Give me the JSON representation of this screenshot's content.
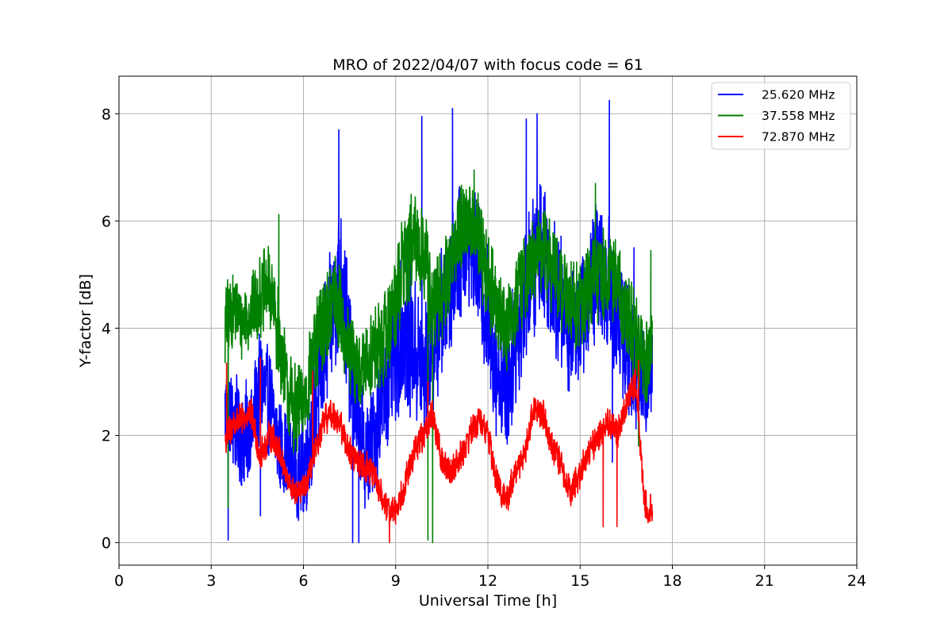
{
  "chart_data": {
    "type": "line",
    "title": "MRO of 2022/04/07 with focus code = 61",
    "xlabel": "Universal Time [h]",
    "ylabel": "Y-factor [dB]",
    "xlim": [
      0,
      24
    ],
    "ylim": [
      -0.42,
      8.7
    ],
    "xticks": [
      0,
      3,
      6,
      9,
      12,
      15,
      18,
      21,
      24
    ],
    "yticks": [
      0,
      2,
      4,
      6,
      8
    ],
    "grid": true,
    "legend_position": "upper right",
    "series": [
      {
        "name": "25.620 MHz",
        "color": "#0000ff",
        "x": [
          3.45,
          3.7,
          4.0,
          4.3,
          4.6,
          4.9,
          5.2,
          5.5,
          5.8,
          6.1,
          6.4,
          6.7,
          7.0,
          7.2,
          7.5,
          7.8,
          8.1,
          8.4,
          8.7,
          9.0,
          9.3,
          9.6,
          9.9,
          10.2,
          10.5,
          10.8,
          11.1,
          11.4,
          11.7,
          12.0,
          12.3,
          12.6,
          12.9,
          13.2,
          13.5,
          13.8,
          14.1,
          14.4,
          14.7,
          15.0,
          15.3,
          15.6,
          15.9,
          16.2,
          16.5,
          16.8,
          17.1,
          17.35
        ],
        "mid": [
          2.4,
          2.3,
          2.0,
          2.1,
          2.9,
          2.6,
          1.8,
          1.6,
          1.2,
          1.6,
          2.6,
          3.6,
          4.5,
          5.2,
          3.6,
          2.0,
          1.6,
          2.3,
          2.9,
          3.6,
          4.0,
          3.6,
          3.1,
          3.6,
          4.3,
          4.8,
          5.4,
          5.6,
          5.1,
          4.2,
          3.2,
          2.8,
          3.8,
          4.6,
          5.2,
          5.6,
          4.9,
          4.4,
          3.9,
          4.2,
          4.7,
          5.1,
          4.9,
          4.3,
          3.8,
          3.3,
          2.9,
          3.4
        ],
        "amp": [
          0.9,
          1.0,
          1.0,
          1.0,
          1.1,
          1.0,
          0.9,
          0.8,
          0.8,
          1.1,
          1.2,
          1.3,
          1.4,
          1.5,
          1.4,
          1.1,
          1.1,
          1.2,
          1.3,
          1.4,
          1.5,
          1.4,
          1.4,
          1.3,
          1.3,
          1.3,
          1.3,
          1.2,
          1.3,
          1.4,
          1.3,
          1.3,
          1.3,
          1.3,
          1.4,
          1.4,
          1.3,
          1.3,
          1.2,
          1.2,
          1.3,
          1.4,
          1.4,
          1.3,
          1.3,
          1.2,
          1.1,
          1.0
        ],
        "spikes": [
          [
            3.55,
            0.05
          ],
          [
            4.6,
            0.5
          ],
          [
            7.15,
            7.7
          ],
          [
            7.6,
            0.0
          ],
          [
            7.8,
            0.0
          ],
          [
            9.85,
            7.95
          ],
          [
            10.85,
            8.1
          ],
          [
            13.25,
            7.9
          ],
          [
            13.6,
            8.0
          ],
          [
            15.95,
            8.25
          ],
          [
            16.05,
            1.5
          ],
          [
            16.75,
            5.5
          ]
        ]
      },
      {
        "name": "37.558 MHz",
        "color": "#008000",
        "x": [
          3.45,
          3.7,
          4.0,
          4.3,
          4.6,
          4.9,
          5.2,
          5.5,
          5.8,
          6.1,
          6.4,
          6.7,
          7.0,
          7.2,
          7.5,
          7.8,
          8.1,
          8.4,
          8.7,
          9.0,
          9.3,
          9.6,
          9.9,
          10.2,
          10.5,
          10.8,
          11.1,
          11.4,
          11.7,
          12.0,
          12.3,
          12.6,
          12.9,
          13.2,
          13.5,
          13.8,
          14.1,
          14.4,
          14.7,
          15.0,
          15.3,
          15.6,
          15.9,
          16.2,
          16.5,
          16.8,
          17.1,
          17.35
        ],
        "mid": [
          4.0,
          4.4,
          4.1,
          4.3,
          4.6,
          4.8,
          3.8,
          2.8,
          2.4,
          2.8,
          3.6,
          4.3,
          4.6,
          4.3,
          3.5,
          3.2,
          3.4,
          3.6,
          3.9,
          4.6,
          5.3,
          5.6,
          5.5,
          4.3,
          4.6,
          5.3,
          5.9,
          6.0,
          5.6,
          4.9,
          4.3,
          4.0,
          4.5,
          5.0,
          5.2,
          5.6,
          5.1,
          4.8,
          4.4,
          4.4,
          4.7,
          5.0,
          5.1,
          4.9,
          4.3,
          3.8,
          3.4,
          3.8
        ],
        "amp": [
          0.8,
          0.8,
          0.7,
          0.7,
          0.8,
          0.8,
          0.9,
          0.9,
          0.9,
          0.9,
          0.9,
          0.9,
          0.9,
          0.9,
          0.9,
          0.9,
          0.9,
          0.9,
          0.9,
          1.0,
          1.0,
          1.0,
          1.0,
          1.0,
          0.9,
          0.9,
          0.9,
          0.9,
          0.9,
          0.9,
          0.9,
          0.9,
          0.9,
          0.9,
          0.9,
          0.9,
          0.9,
          0.9,
          0.9,
          0.9,
          0.9,
          0.9,
          0.9,
          0.9,
          0.9,
          0.9,
          0.9,
          0.9
        ],
        "spikes": [
          [
            3.55,
            0.65
          ],
          [
            5.2,
            6.12
          ],
          [
            10.05,
            0.05
          ],
          [
            10.2,
            0.0
          ],
          [
            11.55,
            6.95
          ],
          [
            15.5,
            6.7
          ],
          [
            16.9,
            1.8
          ],
          [
            17.3,
            5.45
          ]
        ]
      },
      {
        "name": "72.870 MHz",
        "color": "#ff0000",
        "x": [
          3.45,
          3.7,
          4.0,
          4.3,
          4.6,
          4.9,
          5.2,
          5.5,
          5.8,
          6.1,
          6.4,
          6.7,
          7.0,
          7.2,
          7.5,
          7.8,
          8.1,
          8.4,
          8.7,
          9.0,
          9.3,
          9.6,
          9.9,
          10.2,
          10.5,
          10.8,
          11.1,
          11.4,
          11.7,
          12.0,
          12.3,
          12.6,
          12.9,
          13.2,
          13.5,
          13.8,
          14.1,
          14.4,
          14.7,
          15.0,
          15.3,
          15.6,
          15.9,
          16.2,
          16.5,
          16.8,
          17.1,
          17.35
        ],
        "mid": [
          1.9,
          2.2,
          2.3,
          2.4,
          1.6,
          2.0,
          1.8,
          1.1,
          0.9,
          1.1,
          1.7,
          2.3,
          2.4,
          2.2,
          1.7,
          1.5,
          1.4,
          1.1,
          0.6,
          0.6,
          1.1,
          1.7,
          2.0,
          2.4,
          1.5,
          1.3,
          1.6,
          2.0,
          2.3,
          2.0,
          1.1,
          0.8,
          1.3,
          1.7,
          2.5,
          2.4,
          1.8,
          1.4,
          0.9,
          1.3,
          1.7,
          2.0,
          2.3,
          2.0,
          2.6,
          3.0,
          0.7,
          0.6
        ],
        "amp": [
          0.3,
          0.35,
          0.3,
          0.3,
          0.3,
          0.3,
          0.3,
          0.25,
          0.25,
          0.25,
          0.3,
          0.3,
          0.3,
          0.3,
          0.3,
          0.3,
          0.3,
          0.3,
          0.3,
          0.3,
          0.3,
          0.3,
          0.3,
          0.3,
          0.3,
          0.3,
          0.3,
          0.3,
          0.3,
          0.3,
          0.3,
          0.3,
          0.3,
          0.3,
          0.3,
          0.3,
          0.3,
          0.3,
          0.3,
          0.3,
          0.3,
          0.3,
          0.3,
          0.3,
          0.3,
          0.3,
          0.3,
          0.3
        ],
        "spikes": [
          [
            3.5,
            3.35
          ],
          [
            4.6,
            3.45
          ],
          [
            6.3,
            3.2
          ],
          [
            8.8,
            0.0
          ],
          [
            10.05,
            3.0
          ],
          [
            13.5,
            2.7
          ],
          [
            15.75,
            0.3
          ],
          [
            16.2,
            0.3
          ],
          [
            16.9,
            3.4
          ]
        ]
      }
    ]
  }
}
